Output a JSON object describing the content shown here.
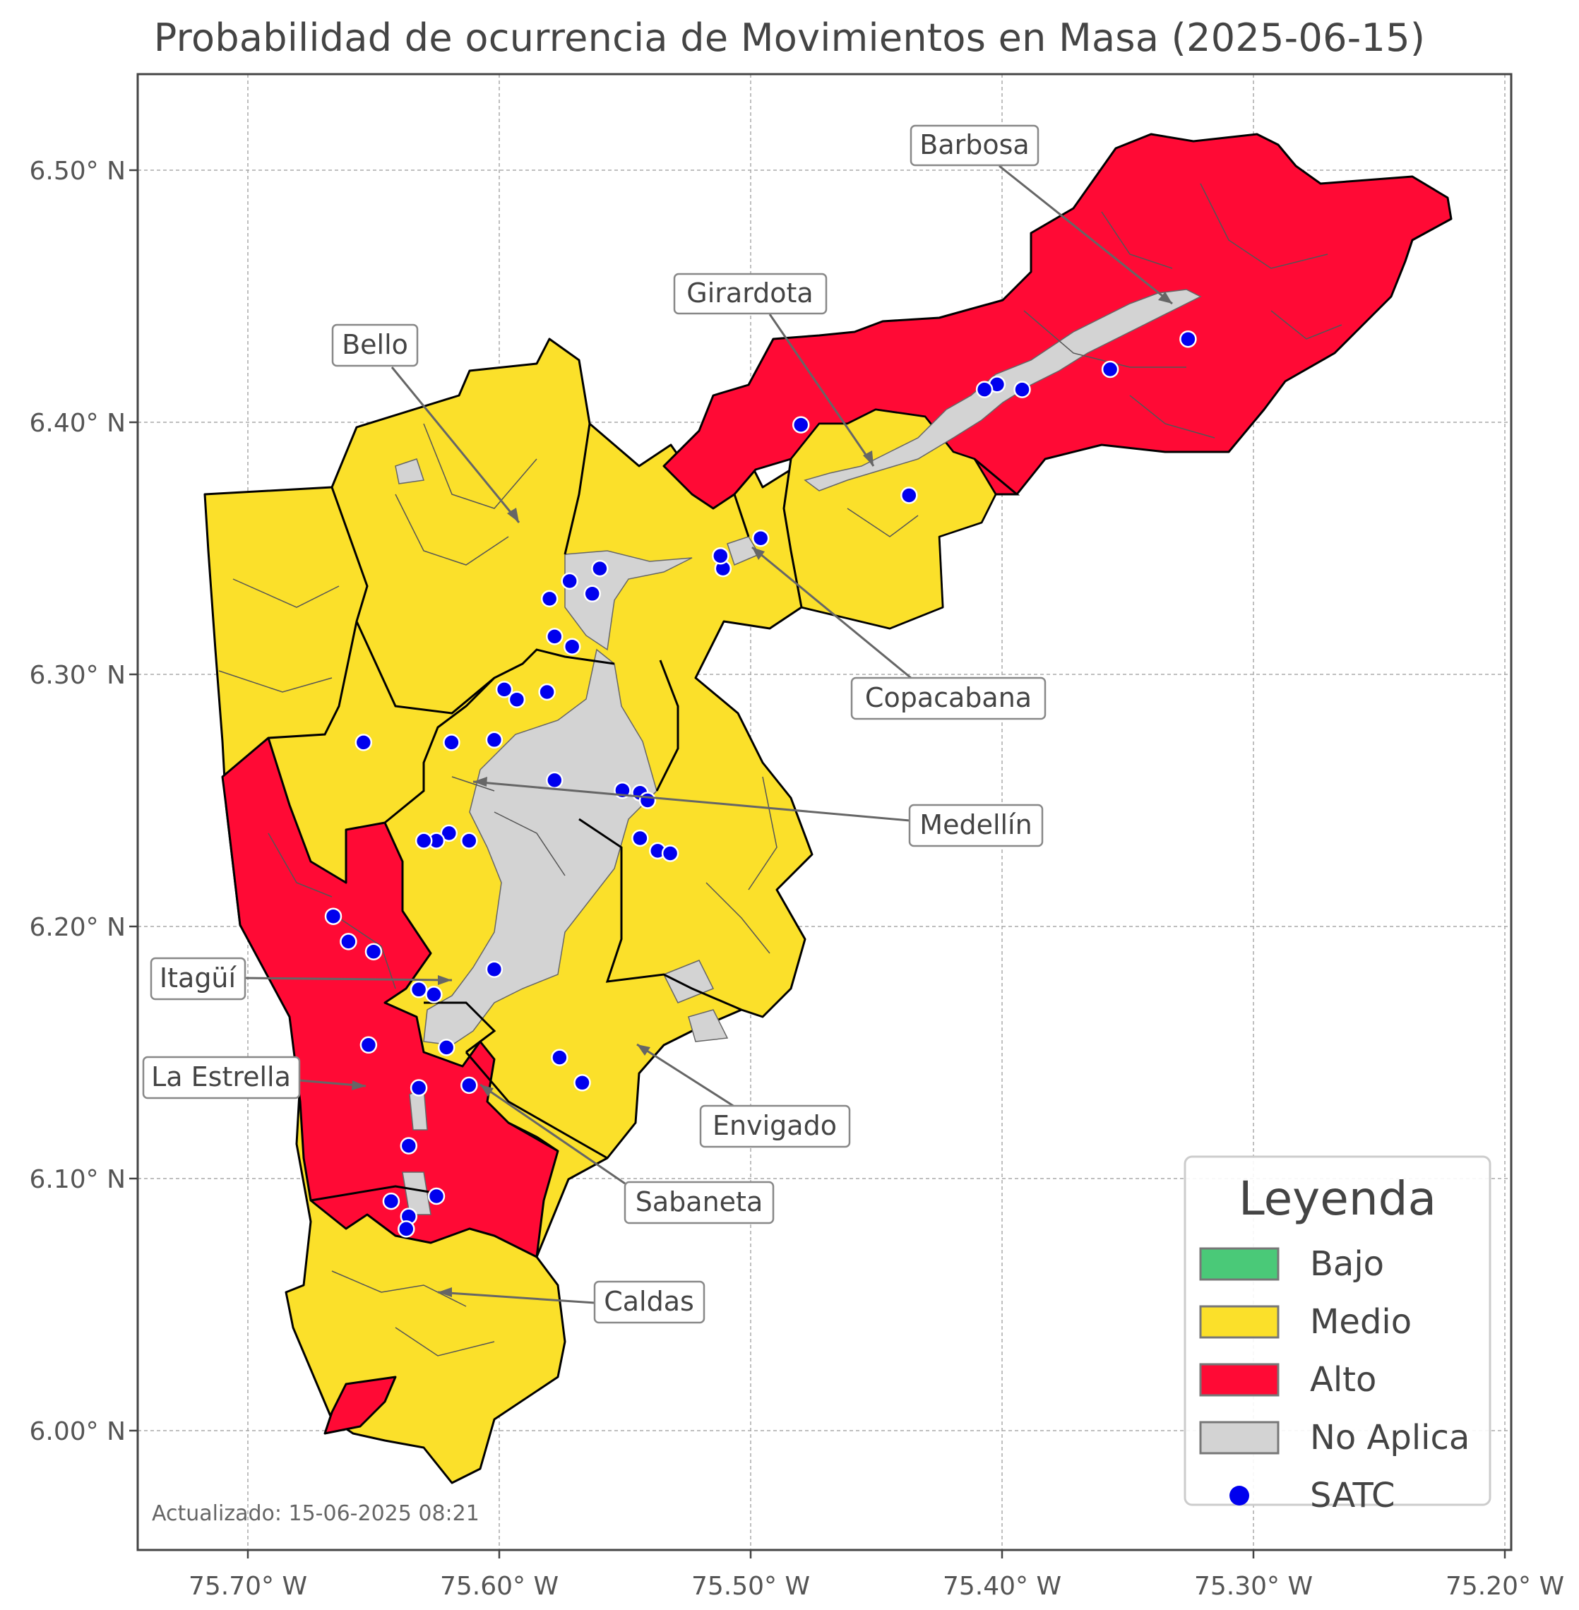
{
  "title": "Probabilidad de ocurrencia de Movimientos en Masa (2025-06-15)",
  "updated": "Actualizado: 15-06-2025 08:21",
  "colors": {
    "bajo": "#4ac978",
    "medio": "#fbe02a",
    "alto": "#ff0a35",
    "no_aplica": "#d3d3d3",
    "satc": "#0000ee",
    "border": "#000000",
    "inner_border": "#555555"
  },
  "x_ticks": [
    "75.70° W",
    "75.60° W",
    "75.50° W",
    "75.40° W",
    "75.30° W",
    "75.20° W"
  ],
  "y_ticks": [
    "6.50° N",
    "6.40° N",
    "6.30° N",
    "6.20° N",
    "6.10° N",
    "6.00° N"
  ],
  "legend": {
    "title": "Leyenda",
    "items": [
      {
        "label": "Bajo",
        "color": "#4ac978"
      },
      {
        "label": "Medio",
        "color": "#fbe02a"
      },
      {
        "label": "Alto",
        "color": "#ff0a35"
      },
      {
        "label": "No Aplica",
        "color": "#d3d3d3"
      },
      {
        "label": "SATC",
        "color": "#0000ee"
      }
    ]
  },
  "municipalities": [
    {
      "name": "Barbosa",
      "level": "Alto"
    },
    {
      "name": "Girardota",
      "level": "Alto"
    },
    {
      "name": "Bello",
      "level": "Medio"
    },
    {
      "name": "Copacabana",
      "level": "Medio"
    },
    {
      "name": "Medellín",
      "level": "Medio"
    },
    {
      "name": "Itagüí",
      "level": "Medio"
    },
    {
      "name": "La Estrella",
      "level": "Alto"
    },
    {
      "name": "Envigado",
      "level": "Medio"
    },
    {
      "name": "Sabaneta",
      "level": "Medio"
    },
    {
      "name": "Caldas",
      "level": "Medio"
    }
  ],
  "satc_stations": [
    [
      -75.326,
      6.433
    ],
    [
      -75.357,
      6.421
    ],
    [
      -75.392,
      6.413
    ],
    [
      -75.402,
      6.415
    ],
    [
      -75.407,
      6.413
    ],
    [
      -75.48,
      6.399
    ],
    [
      -75.437,
      6.371
    ],
    [
      -75.496,
      6.354
    ],
    [
      -75.511,
      6.342
    ],
    [
      -75.512,
      6.347
    ],
    [
      -75.56,
      6.342
    ],
    [
      -75.572,
      6.337
    ],
    [
      -75.563,
      6.332
    ],
    [
      -75.58,
      6.33
    ],
    [
      -75.578,
      6.315
    ],
    [
      -75.571,
      6.311
    ],
    [
      -75.598,
      6.294
    ],
    [
      -75.593,
      6.29
    ],
    [
      -75.581,
      6.293
    ],
    [
      -75.654,
      6.273
    ],
    [
      -75.619,
      6.273
    ],
    [
      -75.602,
      6.274
    ],
    [
      -75.578,
      6.258
    ],
    [
      -75.551,
      6.254
    ],
    [
      -75.544,
      6.253
    ],
    [
      -75.541,
      6.25
    ],
    [
      -75.544,
      6.235
    ],
    [
      -75.537,
      6.23
    ],
    [
      -75.532,
      6.229
    ],
    [
      -75.62,
      6.237
    ],
    [
      -75.625,
      6.234
    ],
    [
      -75.63,
      6.234
    ],
    [
      -75.612,
      6.234
    ],
    [
      -75.666,
      6.204
    ],
    [
      -75.66,
      6.194
    ],
    [
      -75.65,
      6.19
    ],
    [
      -75.602,
      6.183
    ],
    [
      -75.632,
      6.175
    ],
    [
      -75.626,
      6.173
    ],
    [
      -75.652,
      6.153
    ],
    [
      -75.621,
      6.152
    ],
    [
      -75.576,
      6.148
    ],
    [
      -75.567,
      6.138
    ],
    [
      -75.632,
      6.136
    ],
    [
      -75.612,
      6.137
    ],
    [
      -75.636,
      6.113
    ],
    [
      -75.643,
      6.091
    ],
    [
      -75.625,
      6.093
    ],
    [
      -75.636,
      6.085
    ],
    [
      -75.637,
      6.08
    ]
  ]
}
